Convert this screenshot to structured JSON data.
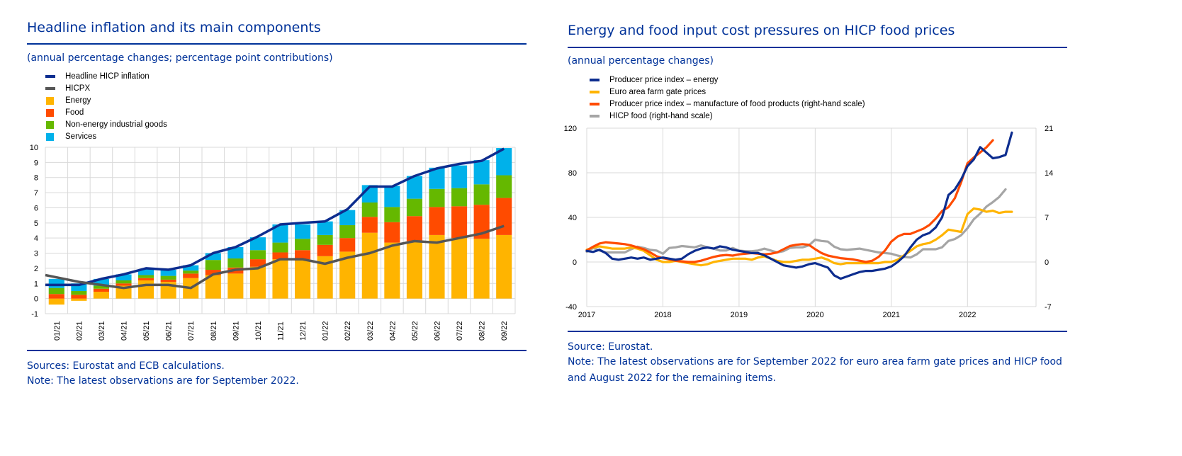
{
  "colors": {
    "ecb_blue": "#003299",
    "headline": "#0d2d8f",
    "hicpx": "#555555",
    "energy": "#ffb400",
    "food": "#ff4b00",
    "neig": "#65b800",
    "services": "#00b1ea",
    "ppi_energy": "#0d2d8f",
    "farm_gate": "#ffb400",
    "ppi_food": "#ff4b00",
    "hicp_food": "#a5a5a5"
  },
  "left": {
    "title": "Headline inflation and its main components",
    "subtitle": "(annual percentage changes; percentage point contributions)",
    "legend": [
      {
        "label": "Headline HICP inflation",
        "kind": "line",
        "color": "#0d2d8f"
      },
      {
        "label": "HICPX",
        "kind": "line",
        "color": "#555555"
      },
      {
        "label": "Energy",
        "kind": "box",
        "color": "#ffb400"
      },
      {
        "label": "Food",
        "kind": "box",
        "color": "#ff4b00"
      },
      {
        "label": "Non-energy industrial goods",
        "kind": "box",
        "color": "#65b800"
      },
      {
        "label": "Services",
        "kind": "box",
        "color": "#00b1ea"
      }
    ],
    "sources": "Sources: Eurostat and ECB calculations.",
    "note": "Note: The latest observations are for September 2022."
  },
  "right": {
    "title": "Energy and food input cost pressures on HICP food prices",
    "subtitle": "(annual percentage changes)",
    "legend": [
      {
        "label": "Producer price index – energy",
        "color": "#0d2d8f"
      },
      {
        "label": "Euro area farm gate prices",
        "color": "#ffb400"
      },
      {
        "label": "Producer price index – manufacture of food products (right-hand scale)",
        "color": "#ff4b00"
      },
      {
        "label": "HICP food (right-hand scale)",
        "color": "#a5a5a5"
      }
    ],
    "source": "Source: Eurostat.",
    "note": "Note: The latest observations are for September 2022 for euro area farm gate prices and HICP food and August 2022 for the remaining items."
  },
  "chart_data": [
    {
      "type": "bar",
      "stacked": true,
      "title": "Headline inflation and its main components",
      "categories": [
        "01/21",
        "02/21",
        "03/21",
        "04/21",
        "05/21",
        "06/21",
        "07/21",
        "08/21",
        "09/21",
        "10/21",
        "11/21",
        "12/21",
        "01/22",
        "02/22",
        "03/22",
        "04/22",
        "05/22",
        "06/22",
        "07/22",
        "08/22",
        "09/22"
      ],
      "ylim": [
        -1,
        10
      ],
      "yticks": [
        "-1",
        "0",
        "1",
        "2",
        "3",
        "4",
        "5",
        "6",
        "7",
        "8",
        "9",
        "10"
      ],
      "series": [
        {
          "name": "Energy",
          "values": [
            -0.4,
            -0.15,
            0.45,
            0.85,
            1.2,
            1.1,
            1.35,
            1.55,
            1.65,
            2.1,
            2.6,
            2.6,
            2.8,
            3.1,
            4.35,
            3.7,
            3.8,
            4.2,
            4.0,
            3.95,
            4.2
          ]
        },
        {
          "name": "Food",
          "values": [
            0.3,
            0.25,
            0.2,
            0.15,
            0.15,
            0.15,
            0.3,
            0.35,
            0.4,
            0.5,
            0.45,
            0.6,
            0.75,
            0.9,
            1.05,
            1.35,
            1.65,
            1.85,
            2.1,
            2.25,
            2.45
          ]
        },
        {
          "name": "Non-energy industrial goods",
          "values": [
            0.4,
            0.25,
            0.2,
            0.2,
            0.2,
            0.25,
            0.2,
            0.65,
            0.6,
            0.6,
            0.65,
            0.75,
            0.65,
            0.85,
            0.95,
            1.0,
            1.15,
            1.2,
            1.2,
            1.35,
            1.5
          ]
        },
        {
          "name": "Services",
          "values": [
            0.6,
            0.5,
            0.45,
            0.4,
            0.4,
            0.4,
            0.35,
            0.45,
            0.75,
            0.85,
            1.2,
            0.95,
            0.9,
            1.0,
            1.15,
            1.4,
            1.5,
            1.4,
            1.5,
            1.6,
            1.8
          ]
        }
      ],
      "lines": [
        {
          "name": "Headline HICP inflation",
          "values": [
            0.9,
            0.9,
            1.3,
            1.6,
            2.0,
            1.9,
            2.2,
            3.0,
            3.4,
            4.1,
            4.9,
            5.0,
            5.1,
            5.9,
            7.4,
            7.4,
            8.1,
            8.6,
            8.9,
            9.1,
            9.9
          ]
        },
        {
          "name": "HICPX",
          "values": [
            1.4,
            1.1,
            0.9,
            0.7,
            0.9,
            0.9,
            0.7,
            1.6,
            1.9,
            2.0,
            2.6,
            2.6,
            2.3,
            2.7,
            3.0,
            3.5,
            3.8,
            3.7,
            4.0,
            4.3,
            4.8
          ]
        }
      ]
    },
    {
      "type": "line",
      "title": "Energy and food input cost pressures on HICP food prices",
      "xlim": [
        2017,
        2022.9
      ],
      "xticks": [
        "2017",
        "2018",
        "2019",
        "2020",
        "2021",
        "2022"
      ],
      "ylim": [
        -40,
        120
      ],
      "yticks": [
        "-40",
        "0",
        "40",
        "80",
        "120"
      ],
      "ylim_right": [
        -7,
        21
      ],
      "yticks_right": [
        "-7",
        "0",
        "7",
        "14",
        "21"
      ],
      "series": [
        {
          "name": "Producer price index – energy",
          "axis": "left",
          "start": 2017.0,
          "step": 0.08333,
          "values": [
            10,
            9,
            11,
            8,
            3,
            2,
            3,
            4,
            3,
            4,
            2,
            3,
            4,
            3,
            2,
            3,
            7,
            10,
            12,
            13,
            12,
            14,
            13,
            11,
            10,
            9,
            8,
            8,
            6,
            3,
            0,
            -3,
            -4,
            -5,
            -4,
            -2,
            -1,
            -3,
            -5,
            -12,
            -15,
            -13,
            -11,
            -9,
            -8,
            -8,
            -7,
            -6,
            -4,
            0,
            5,
            13,
            20,
            24,
            26,
            31,
            40,
            60,
            65,
            74,
            86,
            92,
            103,
            98,
            93,
            94,
            96,
            116
          ]
        },
        {
          "name": "Euro area farm gate prices",
          "axis": "left",
          "start": 2017.0,
          "step": 0.08333,
          "values": [
            11,
            13,
            14,
            13,
            12,
            12,
            12,
            13,
            12,
            10,
            6,
            2,
            0,
            0,
            1,
            0,
            -1,
            -2,
            -3,
            -2,
            0,
            1,
            2,
            3,
            3,
            3,
            2,
            4,
            5,
            3,
            1,
            0,
            0,
            1,
            2,
            2,
            3,
            4,
            2,
            -1,
            -2,
            -1,
            -1,
            -1,
            -1,
            -1,
            -1,
            0,
            0,
            2,
            6,
            10,
            14,
            16,
            17,
            20,
            24,
            29,
            28,
            27,
            43,
            48,
            47,
            45,
            46,
            44,
            45,
            45
          ]
        },
        {
          "name": "Producer price index – manufacture of food products (right-hand scale)",
          "axis": "right",
          "start": 2017.0,
          "step": 0.08333,
          "values": [
            1.8,
            2.4,
            2.9,
            3.1,
            3.0,
            2.9,
            2.8,
            2.6,
            2.3,
            2.0,
            1.5,
            0.9,
            0.6,
            0.4,
            0.2,
            0.1,
            0.0,
            0.0,
            0.2,
            0.5,
            0.8,
            1.0,
            1.1,
            1.0,
            1.2,
            1.3,
            1.4,
            1.3,
            1.2,
            1.3,
            1.5,
            2.0,
            2.5,
            2.7,
            2.8,
            2.7,
            2.0,
            1.4,
            1.0,
            0.8,
            0.6,
            0.5,
            0.4,
            0.2,
            0.0,
            0.2,
            0.8,
            1.8,
            3.2,
            4.0,
            4.4,
            4.4,
            4.8,
            5.2,
            5.8,
            6.8,
            8.0,
            8.6,
            10.0,
            12.5,
            15.5,
            16.4,
            17.2,
            18.0,
            19.1
          ]
        },
        {
          "name": "HICP food (right-hand scale)",
          "axis": "right",
          "start": 2017.0,
          "step": 0.08333,
          "values": [
            1.6,
            2.2,
            1.8,
            1.5,
            1.5,
            1.5,
            1.5,
            2.0,
            2.4,
            2.2,
            1.9,
            1.8,
            1.3,
            2.2,
            2.3,
            2.5,
            2.4,
            2.3,
            2.6,
            2.3,
            2.1,
            1.8,
            1.8,
            2.2,
            1.8,
            1.7,
            1.7,
            1.8,
            2.1,
            1.8,
            1.5,
            1.7,
            2.2,
            2.3,
            2.3,
            2.6,
            3.5,
            3.3,
            3.2,
            2.4,
            2.0,
            1.9,
            2.0,
            2.1,
            1.9,
            1.7,
            1.5,
            1.4,
            1.3,
            1.0,
            0.8,
            0.7,
            1.2,
            2.0,
            2.0,
            2.0,
            2.3,
            3.3,
            3.6,
            4.2,
            5.3,
            6.7,
            7.6,
            8.7,
            9.4,
            10.2,
            11.4
          ]
        }
      ]
    }
  ]
}
